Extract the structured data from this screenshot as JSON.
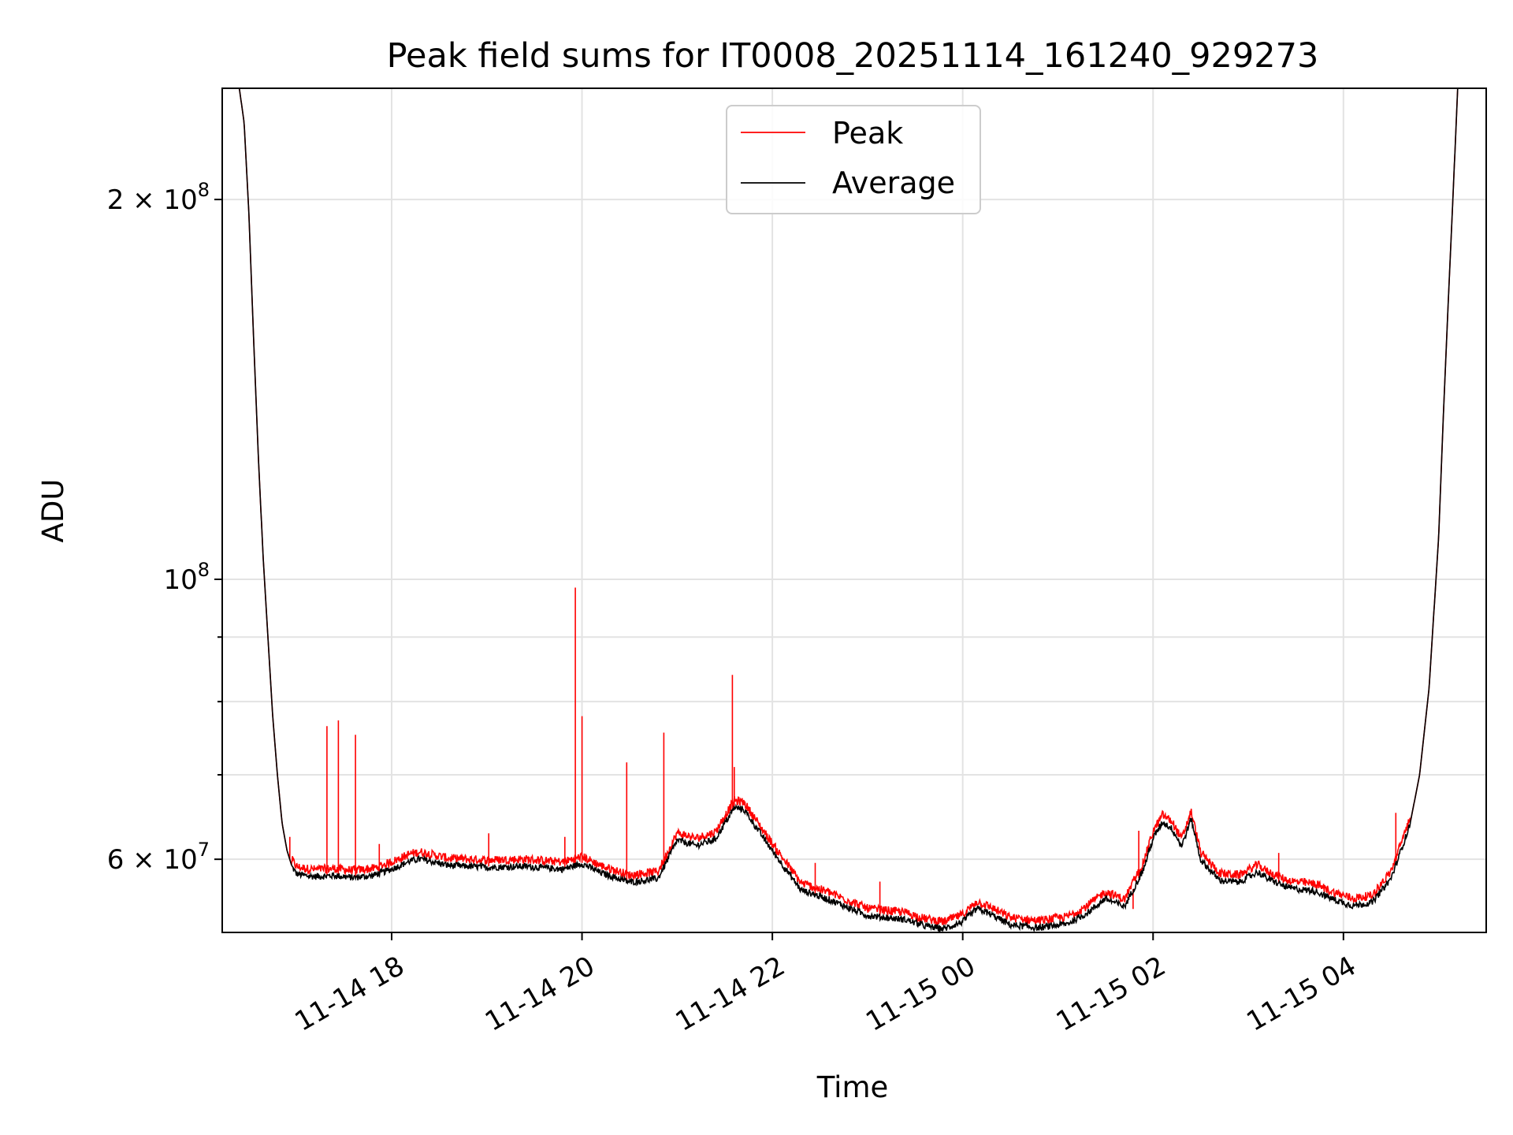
{
  "chart_data": {
    "type": "line",
    "title": "Peak field sums for IT0008_20251114_161240_929273",
    "xlabel": "Time",
    "ylabel": "ADU",
    "y_scale": "log",
    "xlim": [
      16.22,
      29.5
    ],
    "ylim": [
      52500000,
      245000000
    ],
    "grid": true,
    "legend_position": "upper center",
    "x_ticks": [
      {
        "value": 18,
        "label": "11-14 18"
      },
      {
        "value": 20,
        "label": "11-14 20"
      },
      {
        "value": 22,
        "label": "11-14 22"
      },
      {
        "value": 24,
        "label": "11-15 00"
      },
      {
        "value": 26,
        "label": "11-15 02"
      },
      {
        "value": 28,
        "label": "11-15 04"
      }
    ],
    "y_major_ticks": [
      {
        "value": 200000000,
        "mantissa": "2",
        "exponent": "8"
      },
      {
        "value": 100000000,
        "mantissa": "",
        "exponent": "8"
      },
      {
        "value": 60000000,
        "mantissa": "6",
        "exponent": "7"
      }
    ],
    "y_minor_ticks": [
      70000000,
      80000000,
      90000000
    ],
    "tick_times_sign": "×",
    "tick_base": "10",
    "series": [
      {
        "name": "Average",
        "color": "#000000",
        "x": [
          16.4,
          16.45,
          16.5,
          16.55,
          16.6,
          16.65,
          16.7,
          16.75,
          16.8,
          16.85,
          16.9,
          16.95,
          17.0,
          17.1,
          17.2,
          17.4,
          17.6,
          17.8,
          18.0,
          18.2,
          18.3,
          18.6,
          19.0,
          19.4,
          19.8,
          20.0,
          20.2,
          20.5,
          20.8,
          21.0,
          21.2,
          21.4,
          21.6,
          21.7,
          22.0,
          22.3,
          22.6,
          23.0,
          23.4,
          23.6,
          23.8,
          24.0,
          24.15,
          24.3,
          24.5,
          24.8,
          25.1,
          25.3,
          25.5,
          25.7,
          25.9,
          26.0,
          26.1,
          26.2,
          26.3,
          26.4,
          26.5,
          26.7,
          26.9,
          27.1,
          27.2,
          27.4,
          27.5,
          27.7,
          27.9,
          28.1,
          28.3,
          28.5,
          28.7,
          28.8,
          28.9,
          29.0,
          29.05,
          29.1,
          29.15,
          29.2
        ],
        "y": [
          245000000,
          230000000,
          195000000,
          155000000,
          125000000,
          104000000,
          90000000,
          78000000,
          70000000,
          64000000,
          61000000,
          59300000,
          58500000,
          58300000,
          58200000,
          58300000,
          58100000,
          58300000,
          59000000,
          59900000,
          60100000,
          59400000,
          59200000,
          59300000,
          59000000,
          59600000,
          58600000,
          57600000,
          58000000,
          62200000,
          61600000,
          62300000,
          66000000,
          65800000,
          61000000,
          56800000,
          55800000,
          54200000,
          53800000,
          53200000,
          52900000,
          53600000,
          54900000,
          54300000,
          53300000,
          53000000,
          53400000,
          54400000,
          55900000,
          55100000,
          59000000,
          62400000,
          64300000,
          63500000,
          61500000,
          64700000,
          60000000,
          57800000,
          57600000,
          58700000,
          58000000,
          57100000,
          56900000,
          56700000,
          55800000,
          55200000,
          55500000,
          58000000,
          64000000,
          70000000,
          82000000,
          108000000,
          135000000,
          165000000,
          200000000,
          245000000
        ]
      },
      {
        "name": "Peak",
        "color": "#ff0000",
        "spikes": [
          {
            "x": 16.93,
            "y": 62500000
          },
          {
            "x": 17.32,
            "y": 76500000
          },
          {
            "x": 17.44,
            "y": 77300000
          },
          {
            "x": 17.62,
            "y": 75300000
          },
          {
            "x": 17.87,
            "y": 61700000
          },
          {
            "x": 19.02,
            "y": 62900000
          },
          {
            "x": 19.82,
            "y": 62500000
          },
          {
            "x": 19.93,
            "y": 98500000
          },
          {
            "x": 20.0,
            "y": 77900000
          },
          {
            "x": 20.47,
            "y": 71600000
          },
          {
            "x": 20.86,
            "y": 75600000
          },
          {
            "x": 21.58,
            "y": 84000000
          },
          {
            "x": 21.6,
            "y": 71000000
          },
          {
            "x": 22.45,
            "y": 59600000
          },
          {
            "x": 23.13,
            "y": 57600000
          },
          {
            "x": 25.79,
            "y": 54800000
          },
          {
            "x": 25.85,
            "y": 63200000
          },
          {
            "x": 27.32,
            "y": 60700000
          },
          {
            "x": 28.55,
            "y": 65300000
          }
        ]
      }
    ]
  }
}
